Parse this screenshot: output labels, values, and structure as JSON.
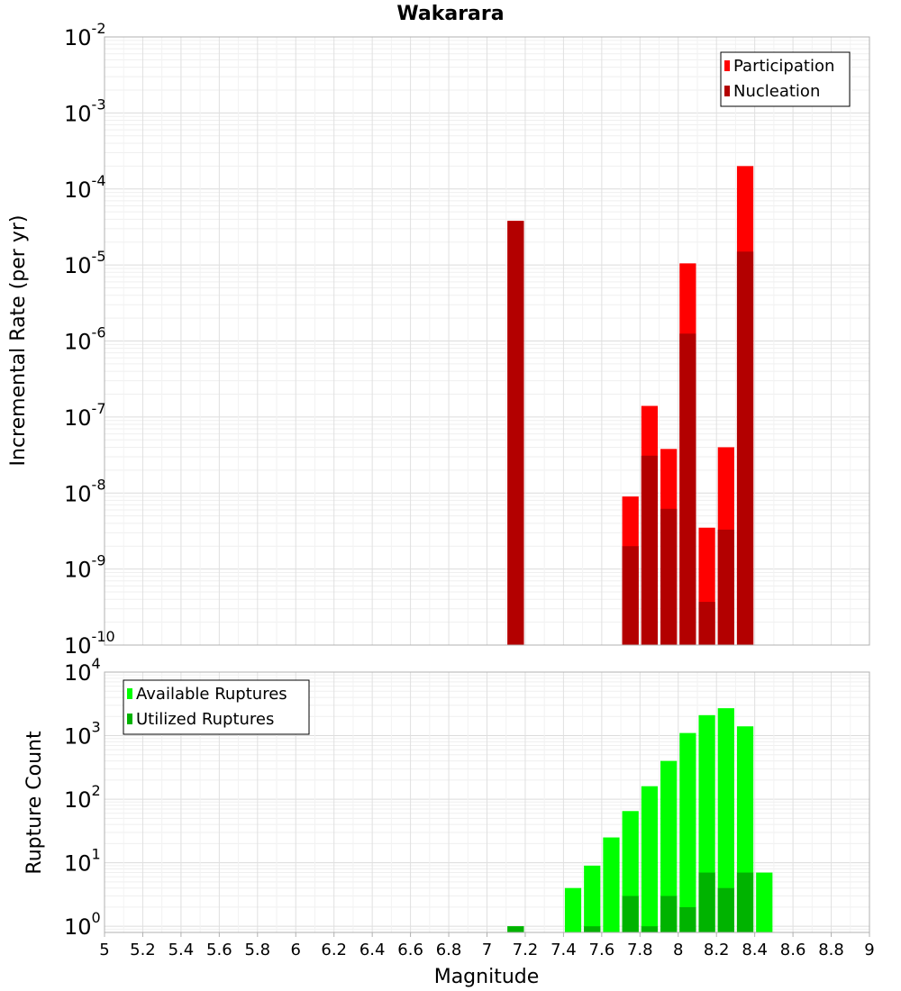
{
  "title": "Wakarara",
  "xlabel": "Magnitude",
  "chart_data": [
    {
      "type": "bar",
      "name": "Incremental Rate",
      "ylabel": "Incremental Rate (per yr)",
      "yscale": "log",
      "ylim": [
        1e-10,
        0.01
      ],
      "xlim": [
        5,
        9
      ],
      "grid": true,
      "legend_placement": "top-right",
      "bar_width": 0.1,
      "x": [
        7.15,
        7.75,
        7.85,
        7.95,
        8.05,
        8.15,
        8.25,
        8.35
      ],
      "series": [
        {
          "name": "Participation",
          "color": "#ff0000",
          "values": [
            3.8e-05,
            9e-09,
            1.4e-07,
            3.8e-08,
            1.05e-05,
            3.5e-09,
            4e-08,
            0.0002
          ]
        },
        {
          "name": "Nucleation",
          "color": "#b30000",
          "values": [
            3.8e-05,
            2e-09,
            3.1e-08,
            6.2e-09,
            1.25e-06,
            3.7e-10,
            3.3e-09,
            1.5e-05
          ]
        }
      ],
      "y_ticks": [
        {
          "base": "10",
          "exp": "-2",
          "value": 0.01
        },
        {
          "base": "10",
          "exp": "-3",
          "value": 0.001
        },
        {
          "base": "10",
          "exp": "-4",
          "value": 0.0001
        },
        {
          "base": "10",
          "exp": "-5",
          "value": 1e-05
        },
        {
          "base": "10",
          "exp": "-6",
          "value": 1e-06
        },
        {
          "base": "10",
          "exp": "-7",
          "value": 1e-07
        },
        {
          "base": "10",
          "exp": "-8",
          "value": 1e-08
        },
        {
          "base": "10",
          "exp": "-9",
          "value": 1e-09
        },
        {
          "base": "10",
          "exp": "-10",
          "value": 1e-10
        }
      ]
    },
    {
      "type": "bar",
      "name": "Rupture Count",
      "ylabel": "Rupture Count",
      "yscale": "log",
      "ylim": [
        0.8,
        10000
      ],
      "xlim": [
        5,
        9
      ],
      "grid": true,
      "legend_placement": "top-left",
      "bar_width": 0.1,
      "x": [
        7.15,
        7.45,
        7.55,
        7.65,
        7.75,
        7.85,
        7.95,
        8.05,
        8.15,
        8.25,
        8.35,
        8.45
      ],
      "series": [
        {
          "name": "Available Ruptures",
          "color": "#00ff00",
          "values": [
            1,
            4,
            9,
            25,
            65,
            160,
            400,
            1100,
            2100,
            2700,
            1400,
            7
          ]
        },
        {
          "name": "Utilized Ruptures",
          "color": "#00b300",
          "values": [
            1,
            0,
            1,
            0,
            3,
            1,
            3,
            2,
            7,
            4,
            7,
            0
          ]
        }
      ],
      "y_ticks": [
        {
          "base": "10",
          "exp": "4",
          "value": 10000
        },
        {
          "base": "10",
          "exp": "3",
          "value": 1000
        },
        {
          "base": "10",
          "exp": "2",
          "value": 100
        },
        {
          "base": "10",
          "exp": "1",
          "value": 10
        },
        {
          "base": "10",
          "exp": "0",
          "value": 1
        }
      ]
    }
  ],
  "x_ticks": [
    "5",
    "5.2",
    "5.4",
    "5.6",
    "5.8",
    "6",
    "6.2",
    "6.4",
    "6.6",
    "6.8",
    "7",
    "7.2",
    "7.4",
    "7.6",
    "7.8",
    "8",
    "8.2",
    "8.4",
    "8.6",
    "8.8",
    "9"
  ]
}
